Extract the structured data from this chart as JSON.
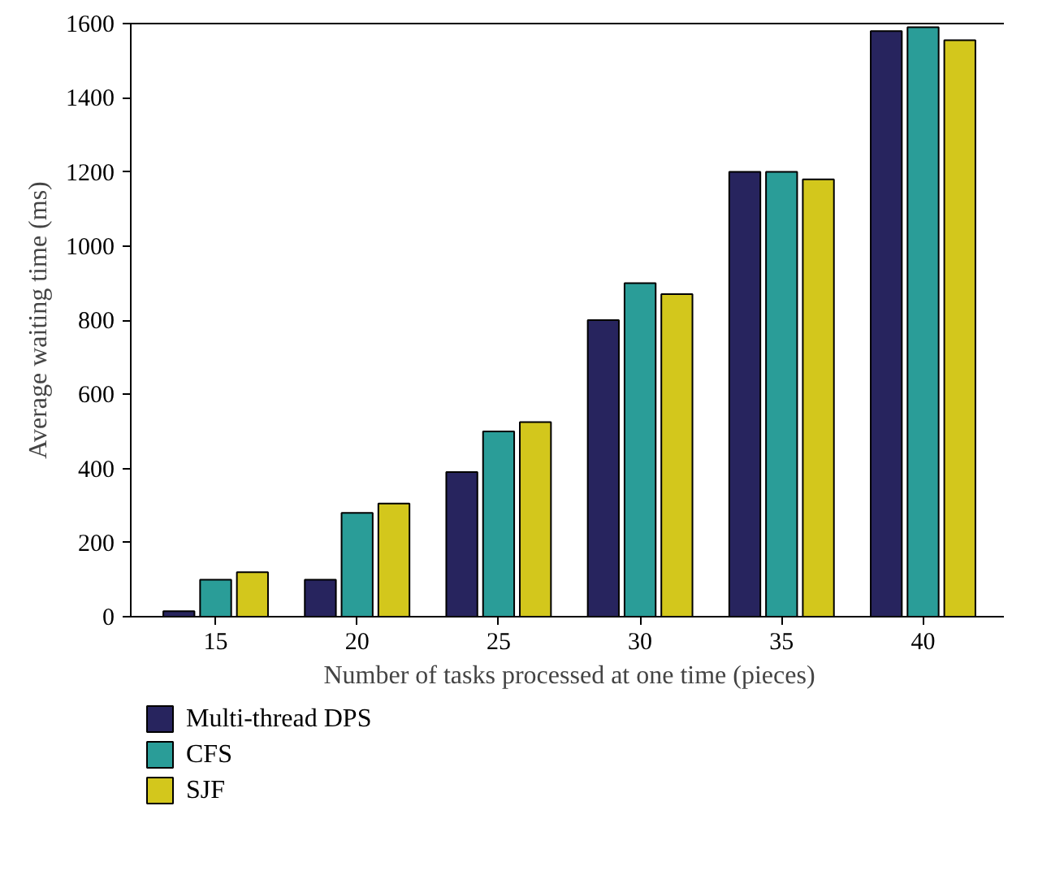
{
  "chart_data": {
    "type": "bar",
    "xlabel": "Number of tasks processed at one time (pieces)",
    "ylabel": "Average waiting time (ms)",
    "categories": [
      "15",
      "20",
      "25",
      "30",
      "35",
      "40"
    ],
    "series": [
      {
        "name": "Multi-thread DPS",
        "color": "#27245e",
        "values": [
          15,
          100,
          390,
          800,
          1200,
          1580
        ]
      },
      {
        "name": "CFS",
        "color": "#2a9d98",
        "values": [
          100,
          280,
          500,
          900,
          1200,
          1590
        ]
      },
      {
        "name": "SJF",
        "color": "#d3c71c",
        "values": [
          120,
          305,
          525,
          870,
          1180,
          1555
        ]
      }
    ],
    "ylim": [
      0,
      1600
    ],
    "yticks": [
      0,
      200,
      400,
      600,
      800,
      1000,
      1200,
      1400,
      1600
    ],
    "grid": false,
    "legend": "bottom"
  }
}
